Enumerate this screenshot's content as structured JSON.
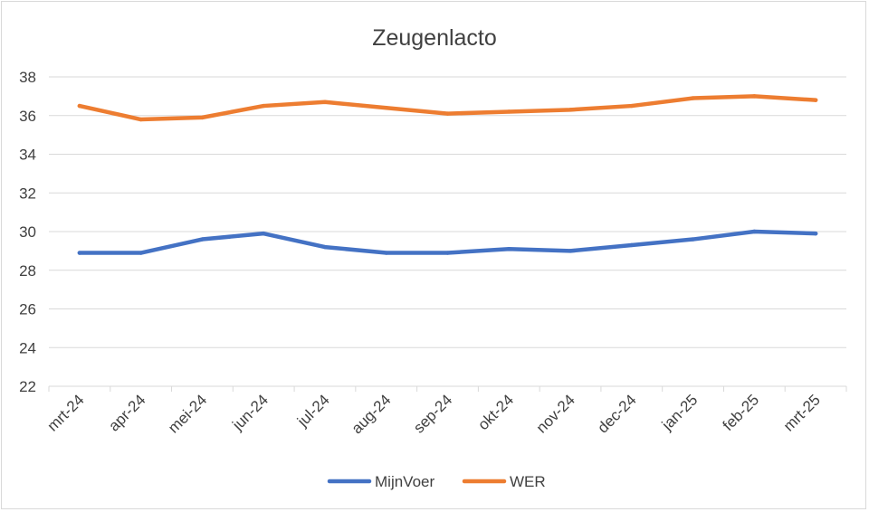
{
  "chart_data": {
    "type": "line",
    "title": "Zeugenlacto",
    "categories": [
      "mrt-24",
      "apr-24",
      "mei-24",
      "jun-24",
      "jul-24",
      "aug-24",
      "sep-24",
      "okt-24",
      "nov-24",
      "dec-24",
      "jan-25",
      "feb-25",
      "mrt-25"
    ],
    "ylim": [
      22,
      38
    ],
    "yticks": [
      22,
      24,
      26,
      28,
      30,
      32,
      34,
      36,
      38
    ],
    "grid": true,
    "legend_position": "bottom",
    "series": [
      {
        "name": "MijnVoer",
        "color": "#4472c4",
        "values": [
          28.9,
          28.9,
          29.6,
          29.9,
          29.2,
          28.9,
          28.9,
          29.1,
          29.0,
          29.3,
          29.6,
          30.0,
          29.9
        ]
      },
      {
        "name": "WER",
        "color": "#ed7d31",
        "values": [
          36.5,
          35.8,
          35.9,
          36.5,
          36.7,
          36.4,
          36.1,
          36.2,
          36.3,
          36.5,
          36.9,
          37.0,
          36.8
        ]
      }
    ]
  }
}
